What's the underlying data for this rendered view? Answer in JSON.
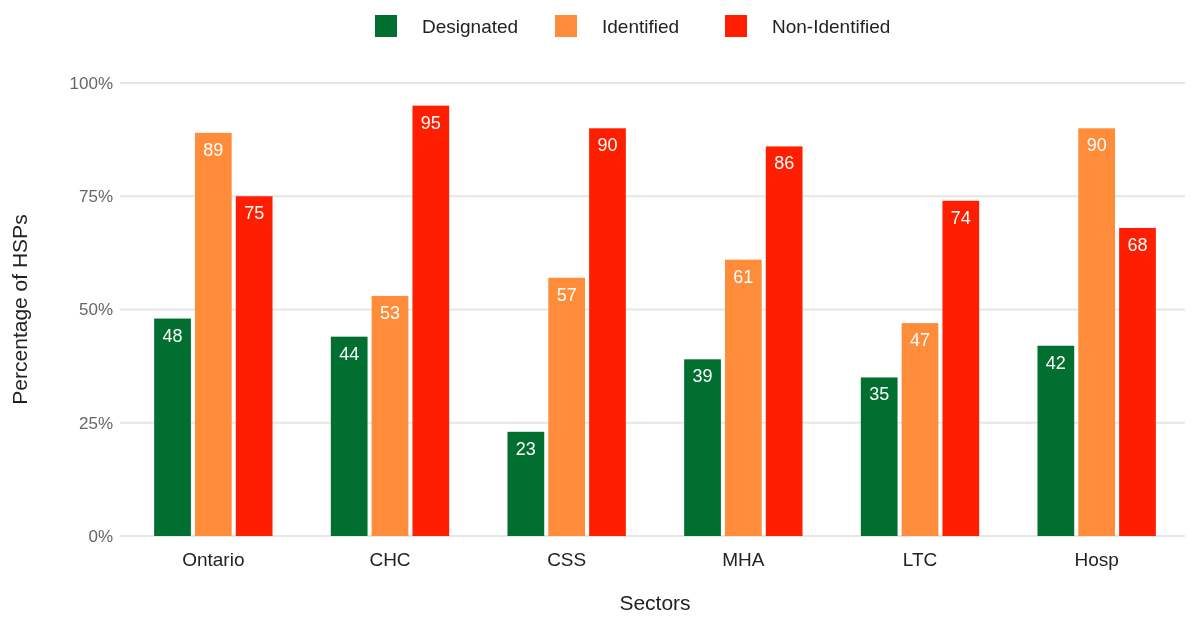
{
  "chart_data": {
    "type": "bar",
    "xlabel": "Sectors",
    "ylabel": "Percentage of HSPs",
    "categories": [
      "Ontario",
      "CHC",
      "CSS",
      "MHA",
      "LTC",
      "Hosp"
    ],
    "series": [
      {
        "name": "Designated",
        "color": "#006f2f",
        "values": [
          48,
          44,
          23,
          39,
          35,
          42
        ]
      },
      {
        "name": "Identified",
        "color": "#ff8c3a",
        "values": [
          89,
          53,
          57,
          61,
          47,
          90
        ]
      },
      {
        "name": "Non-Identified",
        "color": "#ff1e00",
        "values": [
          75,
          95,
          90,
          86,
          74,
          68
        ]
      }
    ],
    "ylim": [
      0,
      100
    ],
    "yticks": [
      {
        "value": 0,
        "label": "0%"
      },
      {
        "value": 25,
        "label": "25%"
      },
      {
        "value": 50,
        "label": "50%"
      },
      {
        "value": 75,
        "label": "75%"
      },
      {
        "value": 100,
        "label": "100%"
      }
    ],
    "grid": "y",
    "legend": "top",
    "data_labels": true
  }
}
